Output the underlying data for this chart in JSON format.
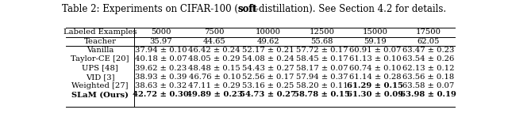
{
  "title_parts": [
    {
      "text": "Table 2: Experiments on CIFAR-100 (",
      "bold": false
    },
    {
      "text": "soft",
      "bold": true
    },
    {
      "text": "-distillation). See Section 4.2 for details.",
      "bold": false
    }
  ],
  "columns": [
    "Labeled Examples",
    "5000",
    "7500",
    "10000",
    "12500",
    "15000",
    "17500"
  ],
  "rows": [
    {
      "name": "Teacher",
      "values": [
        "35.97",
        "44.65",
        "49.62",
        "55.68",
        "59.19",
        "62.05"
      ],
      "name_bold": false,
      "bold_vals": []
    },
    {
      "name": "Vanilla",
      "values": [
        "37.94 ± 0.10",
        "46.42 ± 0.24",
        "52.17 ± 0.21",
        "57.72 ± 0.17",
        "60.91 ± 0.07",
        "63.47 ± 0.23"
      ],
      "name_bold": false,
      "bold_vals": []
    },
    {
      "name": "Taylor-CE [20]",
      "values": [
        "40.18 ± 0.07",
        "48.05 ± 0.29",
        "54.08 ± 0.24",
        "58.45 ± 0.17",
        "61.13 ± 0.10",
        "63.54 ± 0.26"
      ],
      "name_bold": false,
      "bold_vals": []
    },
    {
      "name": "UPS [48]",
      "values": [
        "39.62 ± 0.23",
        "48.48 ± 0.15",
        "54.43 ± 0.27",
        "58.17 ± 0.07",
        "60.74 ± 0.10",
        "62.13 ± 0.12"
      ],
      "name_bold": false,
      "bold_vals": []
    },
    {
      "name": "VID [3]",
      "values": [
        "38.93 ± 0.39",
        "46.76 ± 0.10",
        "52.56 ± 0.17",
        "57.94 ± 0.37",
        "61.14 ± 0.28",
        "63.56 ± 0.18"
      ],
      "name_bold": false,
      "bold_vals": []
    },
    {
      "name": "Weighted [27]",
      "values": [
        "38.63 ± 0.32",
        "47.11 ± 0.29",
        "53.16 ± 0.25",
        "58.20 ± 0.11",
        "61.29 ± 0.15",
        "63.58 ± 0.07"
      ],
      "name_bold": false,
      "bold_vals": [
        4
      ]
    },
    {
      "name": "SLaM (Ours)",
      "values": [
        "42.72 ± 0.30",
        "49.89 ± 0.23",
        "54.73 ± 0.27",
        "58.78 ± 0.15",
        "61.30 ± 0.09",
        "63.98 ± 0.19"
      ],
      "name_bold": true,
      "bold_vals": [
        0,
        1,
        2,
        3,
        4,
        5
      ]
    }
  ],
  "font_size": 7.2,
  "title_font_size": 8.5,
  "bg_color": "#ffffff",
  "line_color": "#000000"
}
